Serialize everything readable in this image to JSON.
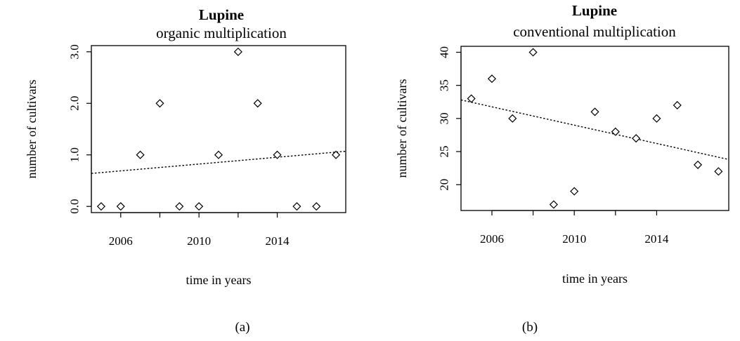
{
  "chart_data": [
    {
      "type": "scatter",
      "title": "Lupine",
      "subtitle": "organic multiplication",
      "xlabel": "time in years",
      "ylabel": "number of cultivars",
      "caption": "(a)",
      "x": [
        2005,
        2006,
        2007,
        2008,
        2009,
        2010,
        2011,
        2012,
        2013,
        2014,
        2015,
        2016,
        2017
      ],
      "y": [
        0,
        0,
        1,
        2,
        0,
        0,
        1,
        3,
        2,
        1,
        0,
        0,
        1
      ],
      "xticks": [
        2006,
        2010,
        2014
      ],
      "yticks": [
        0,
        1,
        2,
        3
      ],
      "ytick_labels": [
        "0.0",
        "1.0",
        "2.0",
        "3.0"
      ],
      "xlim": [
        2004.5,
        2017.5
      ],
      "ylim": [
        -0.12,
        3.12
      ],
      "trendline": {
        "style": "dotted",
        "start": [
          2004.5,
          0.64
        ],
        "end": [
          2017.5,
          1.07
        ]
      }
    },
    {
      "type": "scatter",
      "title": "Lupine",
      "subtitle": "conventional multiplication",
      "xlabel": "time in years",
      "ylabel": "number of cultivars",
      "caption": "(b)",
      "x": [
        2005,
        2006,
        2007,
        2008,
        2009,
        2010,
        2011,
        2012,
        2013,
        2014,
        2015,
        2016,
        2017
      ],
      "y": [
        33,
        36,
        30,
        40,
        17,
        19,
        31,
        28,
        27,
        30,
        32,
        23,
        22
      ],
      "xticks": [
        2006,
        2010,
        2014
      ],
      "yticks": [
        20,
        25,
        30,
        35,
        40
      ],
      "ytick_labels": [
        "20",
        "25",
        "30",
        "35",
        "40"
      ],
      "xlim": [
        2004.5,
        2017.5
      ],
      "ylim": [
        16.1,
        40.9
      ],
      "trendline": {
        "style": "dotted",
        "start": [
          2004.5,
          32.8
        ],
        "end": [
          2017.5,
          23.8
        ]
      }
    }
  ]
}
